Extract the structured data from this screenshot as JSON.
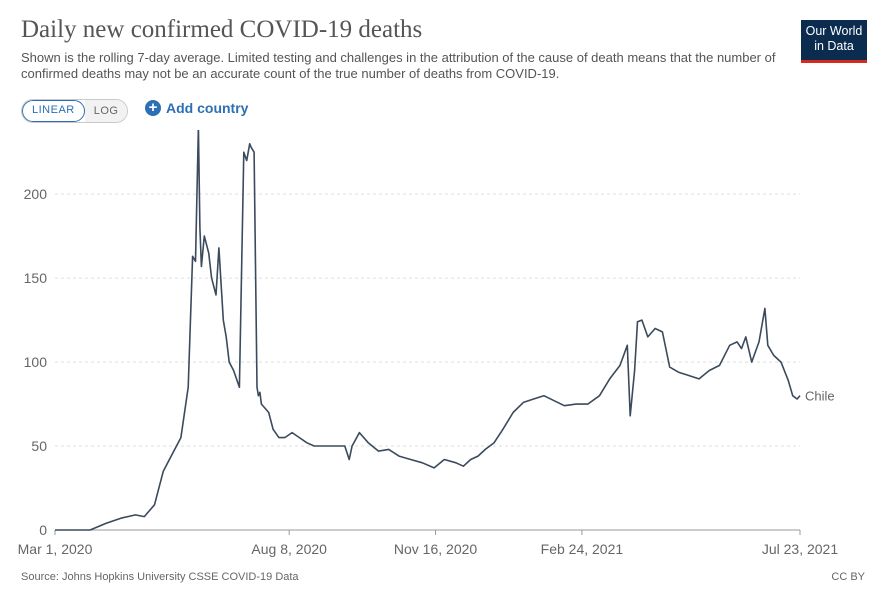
{
  "header": {
    "title": "Daily new confirmed COVID-19 deaths",
    "subtitle": "Shown is the rolling 7-day average. Limited testing and challenges in the attribution of the cause of death means that the number of confirmed deaths may not be an accurate count of the true number of deaths from COVID-19.",
    "logo_line1": "Our World",
    "logo_line2": "in Data"
  },
  "controls": {
    "linear_label": "LINEAR",
    "log_label": "LOG",
    "add_country_label": "Add country",
    "selected_scale": "linear"
  },
  "footer": {
    "source": "Source: Johns Hopkins University CSSE COVID-19 Data",
    "license": "CC BY"
  },
  "colors": {
    "line": "#3b4a5c",
    "grid": "#dddddd",
    "accent": "#2d6fb4"
  },
  "chart_data": {
    "type": "line",
    "title": "Daily new confirmed COVID-19 deaths",
    "xlabel": "",
    "ylabel": "",
    "ylim": [
      0,
      240
    ],
    "yticks": [
      0,
      50,
      100,
      150,
      200
    ],
    "xlim": [
      "2020-03-01",
      "2021-07-23"
    ],
    "xtick_labels": [
      "Mar 1, 2020",
      "Aug 8, 2020",
      "Nov 16, 2020",
      "Feb 24, 2021",
      "Jul 23, 2021"
    ],
    "xtick_dates": [
      "2020-03-01",
      "2020-08-08",
      "2020-11-16",
      "2021-02-24",
      "2021-07-23"
    ],
    "grid": "horizontal dashed",
    "series": [
      {
        "name": "Chile",
        "x": [
          "2020-03-01",
          "2020-03-25",
          "2020-04-05",
          "2020-04-15",
          "2020-04-25",
          "2020-05-01",
          "2020-05-08",
          "2020-05-14",
          "2020-05-20",
          "2020-05-26",
          "2020-05-31",
          "2020-06-03",
          "2020-06-05",
          "2020-06-07",
          "2020-06-08",
          "2020-06-09",
          "2020-06-11",
          "2020-06-14",
          "2020-06-16",
          "2020-06-19",
          "2020-06-21",
          "2020-06-24",
          "2020-06-26",
          "2020-06-28",
          "2020-07-01",
          "2020-07-03",
          "2020-07-05",
          "2020-07-08",
          "2020-07-10",
          "2020-07-12",
          "2020-07-13",
          "2020-07-15",
          "2020-07-17",
          "2020-07-18",
          "2020-07-19",
          "2020-07-20",
          "2020-07-22",
          "2020-07-25",
          "2020-07-28",
          "2020-08-01",
          "2020-08-05",
          "2020-08-10",
          "2020-08-15",
          "2020-08-20",
          "2020-08-25",
          "2020-09-01",
          "2020-09-08",
          "2020-09-15",
          "2020-09-18",
          "2020-09-20",
          "2020-09-25",
          "2020-10-01",
          "2020-10-08",
          "2020-10-15",
          "2020-10-22",
          "2020-10-30",
          "2020-11-07",
          "2020-11-15",
          "2020-11-22",
          "2020-11-30",
          "2020-12-05",
          "2020-12-10",
          "2020-12-15",
          "2020-12-20",
          "2020-12-26",
          "2021-01-01",
          "2021-01-08",
          "2021-01-15",
          "2021-01-22",
          "2021-01-29",
          "2021-02-05",
          "2021-02-12",
          "2021-02-20",
          "2021-02-28",
          "2021-03-08",
          "2021-03-15",
          "2021-03-22",
          "2021-03-27",
          "2021-03-29",
          "2021-04-01",
          "2021-04-03",
          "2021-04-06",
          "2021-04-10",
          "2021-04-15",
          "2021-04-20",
          "2021-04-25",
          "2021-05-01",
          "2021-05-08",
          "2021-05-15",
          "2021-05-22",
          "2021-05-29",
          "2021-06-05",
          "2021-06-10",
          "2021-06-13",
          "2021-06-16",
          "2021-06-20",
          "2021-06-25",
          "2021-06-29",
          "2021-07-01",
          "2021-07-05",
          "2021-07-10",
          "2021-07-15",
          "2021-07-18",
          "2021-07-21",
          "2021-07-23"
        ],
        "y": [
          0,
          0,
          4,
          7,
          9,
          8,
          15,
          35,
          45,
          55,
          85,
          163,
          160,
          240,
          180,
          157,
          175,
          165,
          150,
          140,
          168,
          125,
          115,
          100,
          95,
          90,
          85,
          225,
          220,
          230,
          228,
          225,
          85,
          80,
          82,
          75,
          73,
          70,
          60,
          55,
          55,
          58,
          55,
          52,
          50,
          50,
          50,
          50,
          42,
          50,
          58,
          52,
          47,
          48,
          44,
          42,
          40,
          37,
          42,
          40,
          38,
          42,
          44,
          48,
          52,
          60,
          70,
          76,
          78,
          80,
          77,
          74,
          75,
          75,
          80,
          90,
          98,
          110,
          68,
          95,
          124,
          125,
          115,
          120,
          118,
          97,
          94,
          92,
          90,
          95,
          98,
          110,
          112,
          108,
          115,
          100,
          112,
          132,
          110,
          104,
          100,
          89,
          80,
          78,
          80
        ]
      }
    ]
  }
}
